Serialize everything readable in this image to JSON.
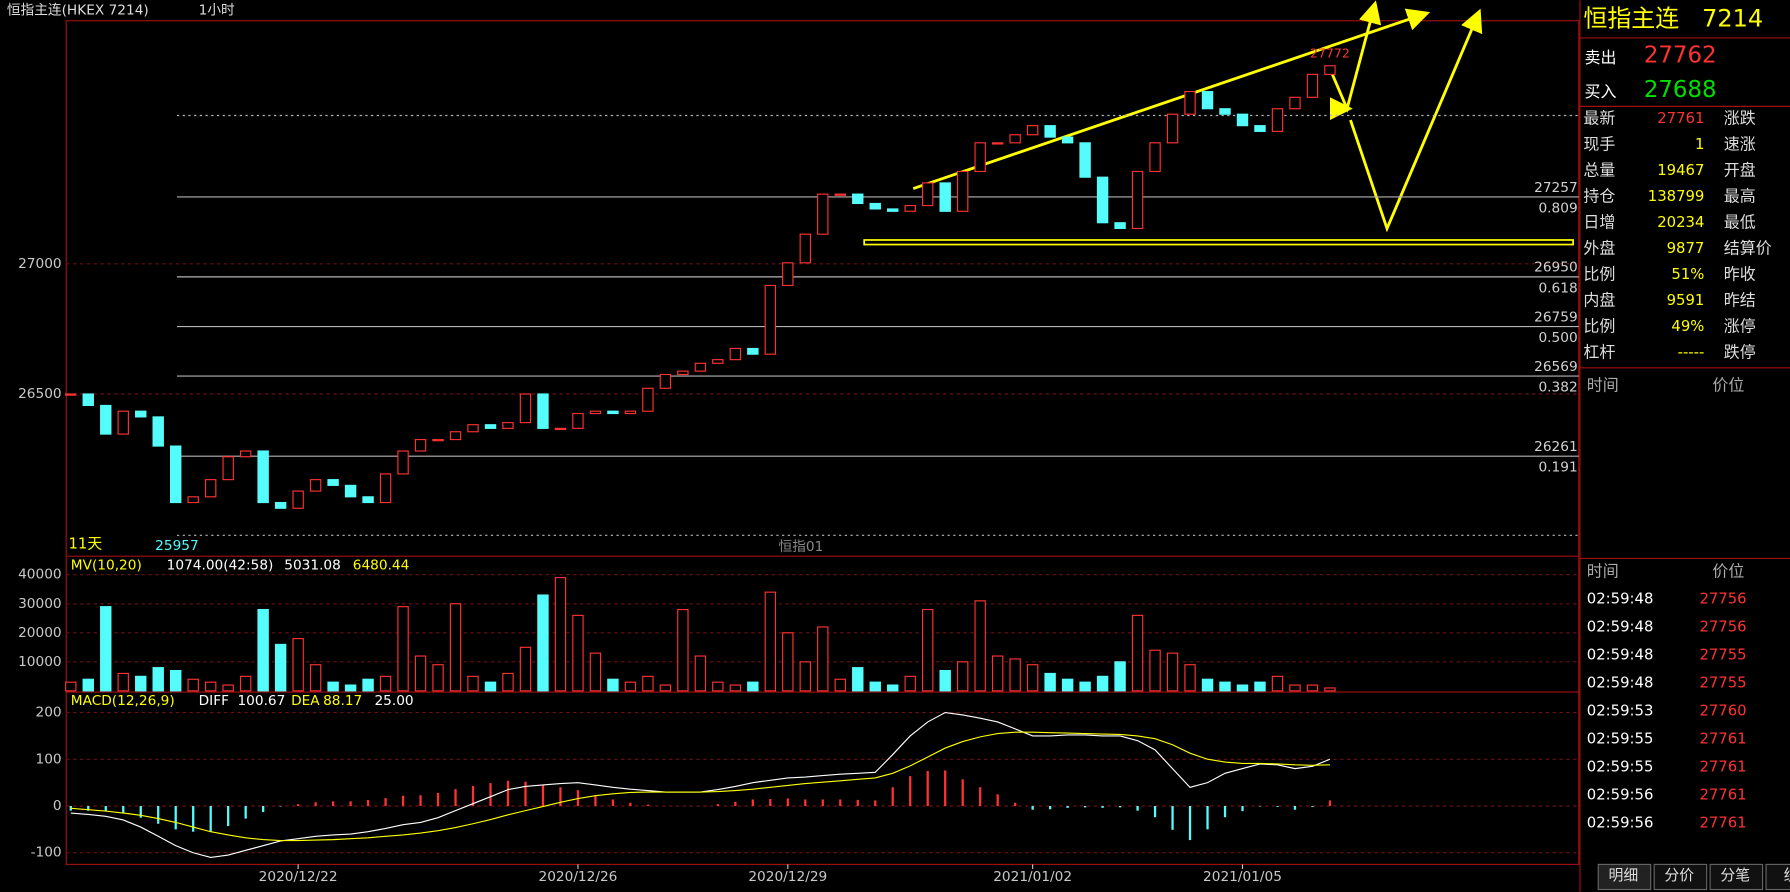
{
  "header": {
    "title": "恒指主连(HKEX 7214)",
    "period": "1小时"
  },
  "chart_data": [
    {
      "type": "candlestick",
      "close": [
        26500,
        26456,
        26346,
        26434,
        26412,
        26300,
        26083,
        26105,
        26171,
        26259,
        26281,
        26083,
        26061,
        26127,
        26171,
        26149,
        26105,
        26083,
        26193,
        26281,
        26325,
        26325,
        26355,
        26382,
        26368,
        26390,
        26500,
        26368,
        26368,
        26425,
        26434,
        26425,
        26434,
        26522,
        26575,
        26588,
        26618,
        26632,
        26675,
        26653,
        26917,
        27004,
        27114,
        27268,
        27268,
        27232,
        27211,
        27202,
        27224,
        27311,
        27202,
        27355,
        27465,
        27465,
        27496,
        27531,
        27487,
        27465,
        27333,
        27158,
        27136,
        27355,
        27465,
        27575,
        27662,
        27596,
        27575,
        27531,
        27509,
        27596,
        27640,
        27728,
        27761
      ],
      "x": [
        null,
        null,
        null,
        null,
        null,
        null,
        null,
        null,
        null,
        null,
        null,
        null,
        null,
        "2020/12/22",
        null,
        null,
        null,
        null,
        null,
        null,
        null,
        null,
        null,
        null,
        null,
        null,
        null,
        null,
        null,
        "2020/12/26",
        null,
        null,
        null,
        null,
        null,
        null,
        null,
        null,
        null,
        null,
        null,
        "2020/12/29",
        null,
        null,
        null,
        null,
        null,
        null,
        null,
        null,
        null,
        null,
        null,
        null,
        null,
        "2021/01/02",
        null,
        null,
        null,
        null,
        null,
        null,
        null,
        null,
        null,
        null,
        null,
        "2021/01/05",
        null,
        null,
        null,
        null,
        null
      ],
      "ylim": [
        25877,
        27934
      ],
      "yticks": [
        26500,
        27000
      ],
      "grid": true,
      "up_color": "#ff3232",
      "down_color": "#54fcfc",
      "fib_levels": [
        {
          "value": 27257,
          "ratio": "0.809"
        },
        {
          "value": 26950,
          "ratio": "0.618"
        },
        {
          "value": 26759,
          "ratio": "0.500"
        },
        {
          "value": 26569,
          "ratio": "0.382"
        },
        {
          "value": 26261,
          "ratio": "0.191"
        }
      ],
      "dashed_level": 27570,
      "support_level": 27083,
      "high_label": 27772,
      "low_label": 25957,
      "span_label": "11天",
      "contract_label": "恒指01"
    },
    {
      "type": "bar",
      "indicator": "MV(10,20)",
      "readout": "1074.00(42:58)",
      "ma10": 5031.08,
      "ma20": 6480.44,
      "values": [
        3000,
        4000,
        29000,
        6000,
        5000,
        8000,
        7000,
        4000,
        3000,
        2000,
        5000,
        28000,
        16000,
        18000,
        9000,
        3000,
        2000,
        4000,
        5000,
        29000,
        12000,
        9000,
        30000,
        5000,
        3000,
        6000,
        15000,
        33000,
        39000,
        26000,
        13000,
        4000,
        3000,
        5000,
        2000,
        28000,
        12000,
        3000,
        2000,
        3000,
        34000,
        20000,
        10000,
        22000,
        4000,
        8000,
        3000,
        2000,
        5000,
        28000,
        7000,
        10000,
        31000,
        12000,
        11000,
        9000,
        6000,
        4000,
        3000,
        5000,
        10000,
        26000,
        14000,
        13000,
        9000,
        4000,
        3000,
        2000,
        3000,
        5000,
        2000,
        2000,
        1000
      ],
      "ylim": [
        0,
        46000
      ],
      "yticks": [
        10000,
        20000,
        30000,
        40000
      ]
    },
    {
      "type": "macd",
      "indicator": "MACD(12,26,9)",
      "diff_name": "DIFF",
      "diff_value": 100.67,
      "dea_name": "DEA",
      "dea_value": 88.17,
      "macd_value": {
        "value": 25,
        "label": "25.00"
      },
      "diff": [
        -15,
        -18,
        -22,
        -30,
        -45,
        -65,
        -85,
        -100,
        -110,
        -105,
        -95,
        -85,
        -75,
        -70,
        -65,
        -62,
        -60,
        -55,
        -48,
        -40,
        -35,
        -25,
        -10,
        5,
        20,
        35,
        42,
        45,
        48,
        50,
        45,
        40,
        36,
        33,
        30,
        30,
        30,
        35,
        42,
        50,
        55,
        60,
        62,
        65,
        68,
        70,
        72,
        110,
        150,
        180,
        200,
        195,
        188,
        180,
        165,
        150,
        150,
        152,
        152,
        150,
        150,
        140,
        120,
        80,
        40,
        50,
        70,
        80,
        90,
        88,
        80,
        85,
        100
      ],
      "dea": [
        -5,
        -8,
        -11,
        -15,
        -20,
        -27,
        -35,
        -45,
        -55,
        -62,
        -68,
        -72,
        -74,
        -74,
        -73,
        -72,
        -70,
        -68,
        -65,
        -62,
        -58,
        -53,
        -46,
        -38,
        -29,
        -19,
        -10,
        -1,
        8,
        16,
        22,
        26,
        29,
        30,
        30,
        30,
        30,
        31,
        33,
        36,
        40,
        44,
        48,
        51,
        54,
        57,
        60,
        70,
        86,
        105,
        124,
        138,
        148,
        155,
        158,
        158,
        157,
        156,
        155,
        154,
        153,
        150,
        144,
        131,
        113,
        100,
        94,
        91,
        91,
        90,
        88,
        87,
        88
      ],
      "macd": [
        -10,
        -10,
        -11,
        -15,
        -25,
        -38,
        -50,
        -55,
        -55,
        -43,
        -27,
        -13,
        -1,
        4,
        8,
        10,
        10,
        13,
        17,
        22,
        23,
        28,
        36,
        43,
        49,
        54,
        52,
        46,
        40,
        34,
        23,
        14,
        7,
        3,
        0,
        0,
        0,
        4,
        9,
        14,
        15,
        16,
        14,
        14,
        14,
        13,
        12,
        40,
        64,
        75,
        76,
        57,
        40,
        25,
        7,
        -8,
        -7,
        -4,
        -3,
        -4,
        -3,
        -10,
        -24,
        -51,
        -73,
        -50,
        -24,
        -11,
        -1,
        -2,
        -8,
        -2,
        12
      ],
      "ylim": [
        -125,
        244
      ],
      "yticks": [
        -100,
        0,
        100,
        200
      ]
    }
  ],
  "quote": {
    "name": "恒指主连",
    "code": "7214",
    "sell": {
      "label": "卖出",
      "value": 27762
    },
    "buy": {
      "label": "买入",
      "value": 27688
    },
    "rows": [
      [
        "最新",
        27761,
        "涨跌"
      ],
      [
        "现手",
        1,
        "速涨"
      ],
      [
        "总量",
        19467,
        "开盘"
      ],
      [
        "持仓",
        138799,
        "最高"
      ],
      [
        "日增",
        20234,
        "最低"
      ],
      [
        "外盘",
        9877,
        "结算价"
      ],
      [
        "比例",
        {
          "value": 51,
          "label": "51%"
        },
        "昨收"
      ],
      [
        "内盘",
        9591,
        "昨结"
      ],
      [
        "比例",
        {
          "value": 49,
          "label": "49%"
        },
        "涨停"
      ],
      [
        "杠杆",
        "-----",
        "跌停"
      ]
    ],
    "time_header": "时间",
    "price_header": "价位",
    "ticks": [
      [
        "02:59:48",
        27756
      ],
      [
        "02:59:48",
        27756
      ],
      [
        "02:59:48",
        27755
      ],
      [
        "02:59:48",
        27755
      ],
      [
        "02:59:53",
        27760
      ],
      [
        "02:59:55",
        27761
      ],
      [
        "02:59:55",
        27761
      ],
      [
        "02:59:56",
        27761
      ],
      [
        "02:59:56",
        27761
      ]
    ],
    "tabs": [
      "明细",
      "分价",
      "分笔",
      "统"
    ]
  }
}
